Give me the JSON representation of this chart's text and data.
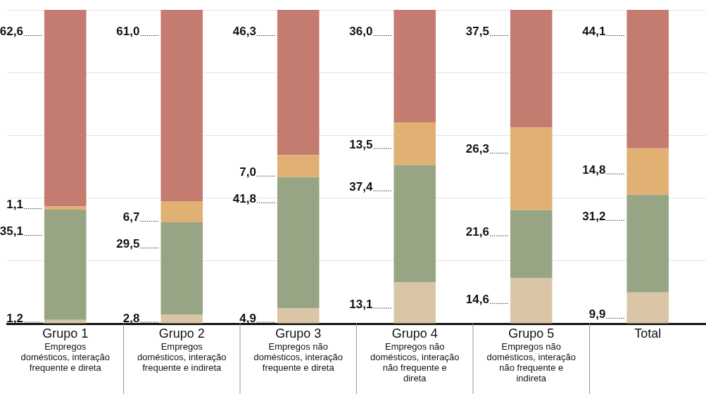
{
  "chart_data": {
    "type": "bar",
    "stacked": true,
    "categories": [
      "Grupo 1\nEmpregos\ndomésticos, interação\nfrequente e direta",
      "Grupo 2\nEmpregos\ndomésticos, interação\nfrequente e indireta",
      "Grupo 3\nEmpregos não\ndomésticos, interação\nfrequente e direta",
      "Grupo 4\nEmpregos não\ndomésticos, interação\nnão frequente e\ndireta",
      "Grupo 5\nEmpregos não\ndomésticos, interação\nnão frequente e\nindireta",
      "Total"
    ],
    "series": [
      {
        "color": "#dac6a7",
        "values": [
          1.2,
          2.8,
          4.9,
          13.1,
          14.6,
          9.9
        ],
        "value_labels": [
          "1,2",
          "2,8",
          "4,9",
          "13,1",
          "14,6",
          "9,9"
        ]
      },
      {
        "color": "#98a584",
        "values": [
          35.1,
          29.5,
          41.8,
          37.4,
          21.6,
          31.2
        ],
        "value_labels": [
          "35,1",
          "29,5",
          "41,8",
          "37,4",
          "21,6",
          "31,2"
        ]
      },
      {
        "color": "#e0b172",
        "values": [
          1.1,
          6.7,
          7.0,
          13.5,
          26.3,
          14.8
        ],
        "value_labels": [
          "1,1",
          "6,7",
          "7,0",
          "13,5",
          "26,3",
          "14,8"
        ]
      },
      {
        "color": "#c47b70",
        "values": [
          62.6,
          61.0,
          46.3,
          36.0,
          37.5,
          44.1
        ],
        "value_labels": [
          "62,6",
          "61,0",
          "46,3",
          "36,0",
          "37,5",
          "44,1"
        ]
      }
    ],
    "ylim": [
      0,
      100
    ],
    "grid": "y",
    "tick_labels": "x",
    "legend": false
  }
}
